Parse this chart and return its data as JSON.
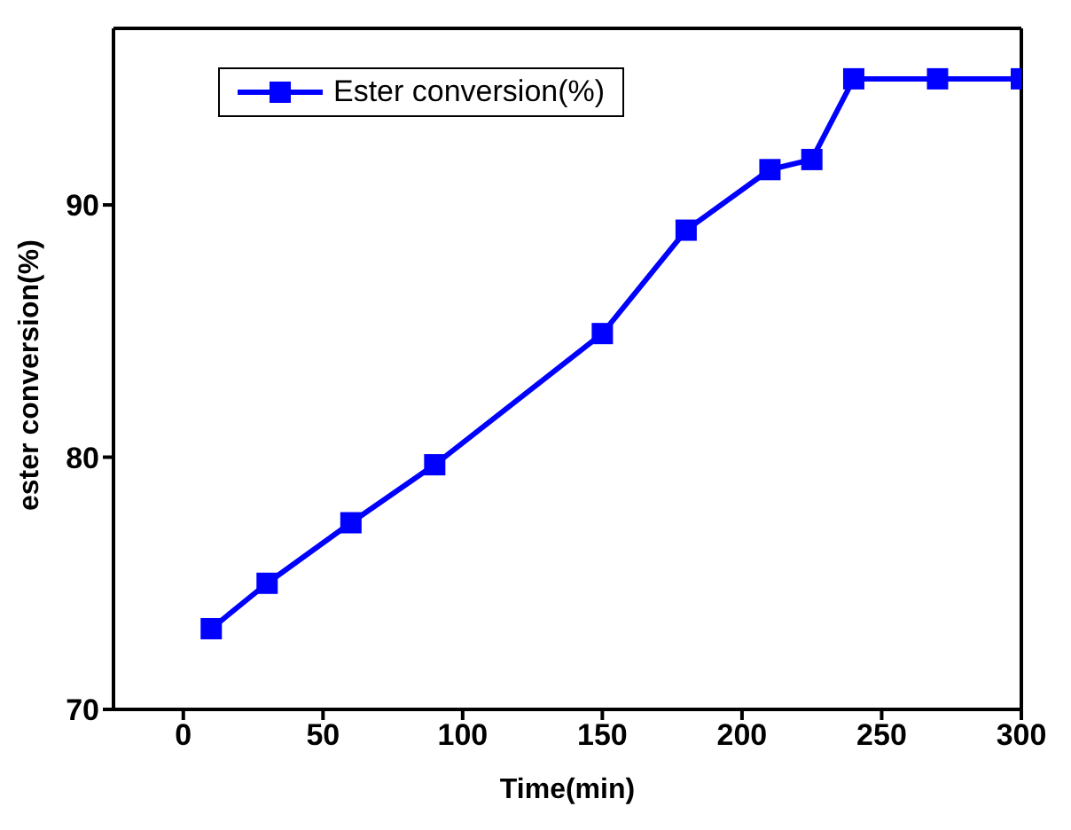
{
  "chart_data": {
    "type": "line",
    "xlabel": "Time(min)",
    "ylabel": "ester conversion(%)",
    "x": [
      10,
      30,
      60,
      90,
      150,
      180,
      210,
      225,
      240,
      270,
      300
    ],
    "series": [
      {
        "name": "Ester conversion(%)",
        "color": "#0000ff",
        "values": [
          73.2,
          75,
          77.4,
          79.7,
          84.9,
          89,
          91.4,
          91.8,
          95,
          95,
          95
        ]
      }
    ],
    "xlim": [
      -25,
      300
    ],
    "xticks": [
      0,
      50,
      100,
      150,
      200,
      250,
      300
    ],
    "ylim": [
      70,
      97
    ],
    "yticks": [
      70,
      80,
      90
    ],
    "grid": false,
    "legend": "top left",
    "marker": "square",
    "line_style": "solid"
  }
}
